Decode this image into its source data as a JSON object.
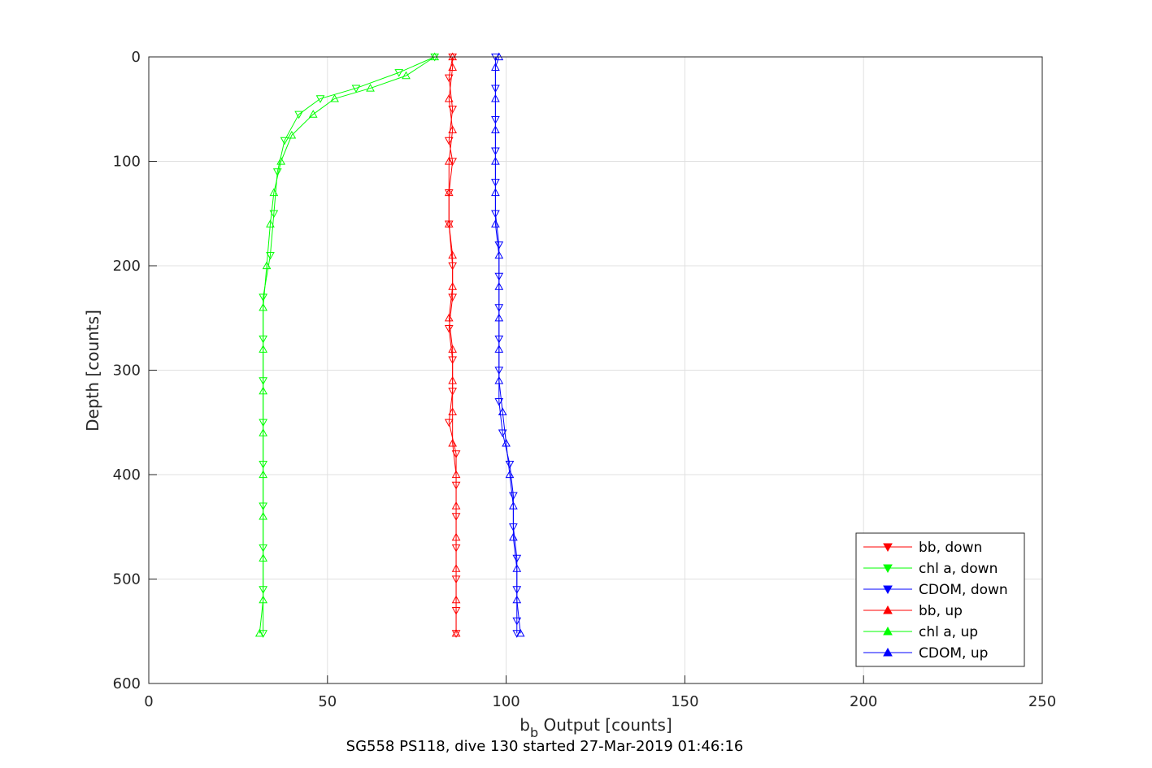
{
  "chart_data": {
    "type": "scatter",
    "xlabel": {
      "main": "b",
      "sub": "b",
      "rest": " Output [counts]"
    },
    "ylabel": "Depth [counts]",
    "caption": "SG558 PS118, dive 130 started 27-Mar-2019 01:46:16",
    "xlim": [
      0,
      250
    ],
    "ylim": [
      0,
      600
    ],
    "y_reversed": true,
    "grid": true,
    "legend_placement": "bottom-right",
    "x_ticks": [
      "0",
      "50",
      "100",
      "150",
      "200",
      "250"
    ],
    "y_ticks": [
      "0",
      "100",
      "200",
      "300",
      "400",
      "500",
      "600"
    ],
    "series": [
      {
        "name": "bb, down",
        "color": "#ff0000",
        "marker": "triangle-down",
        "points": [
          [
            85,
            0
          ],
          [
            84,
            20
          ],
          [
            85,
            50
          ],
          [
            84,
            80
          ],
          [
            85,
            100
          ],
          [
            84,
            130
          ],
          [
            84,
            160
          ],
          [
            85,
            200
          ],
          [
            85,
            230
          ],
          [
            84,
            260
          ],
          [
            85,
            290
          ],
          [
            85,
            320
          ],
          [
            84,
            350
          ],
          [
            86,
            380
          ],
          [
            86,
            410
          ],
          [
            86,
            440
          ],
          [
            86,
            470
          ],
          [
            86,
            500
          ],
          [
            86,
            530
          ],
          [
            86,
            552
          ]
        ]
      },
      {
        "name": "chl a, down",
        "color": "#00ff00",
        "marker": "triangle-down",
        "points": [
          [
            80,
            0
          ],
          [
            70,
            15
          ],
          [
            58,
            30
          ],
          [
            48,
            40
          ],
          [
            42,
            55
          ],
          [
            38,
            80
          ],
          [
            36,
            110
          ],
          [
            35,
            150
          ],
          [
            34,
            190
          ],
          [
            32,
            230
          ],
          [
            32,
            270
          ],
          [
            32,
            310
          ],
          [
            32,
            350
          ],
          [
            32,
            390
          ],
          [
            32,
            430
          ],
          [
            32,
            470
          ],
          [
            32,
            510
          ],
          [
            32,
            552
          ]
        ]
      },
      {
        "name": "CDOM, down",
        "color": "#0000ff",
        "marker": "triangle-down",
        "points": [
          [
            97,
            0
          ],
          [
            97,
            30
          ],
          [
            97,
            60
          ],
          [
            97,
            90
          ],
          [
            97,
            120
          ],
          [
            97,
            150
          ],
          [
            98,
            180
          ],
          [
            98,
            210
          ],
          [
            98,
            240
          ],
          [
            98,
            270
          ],
          [
            98,
            300
          ],
          [
            98,
            330
          ],
          [
            99,
            360
          ],
          [
            101,
            390
          ],
          [
            102,
            420
          ],
          [
            102,
            450
          ],
          [
            103,
            480
          ],
          [
            103,
            510
          ],
          [
            103,
            540
          ],
          [
            103,
            552
          ]
        ]
      },
      {
        "name": "bb, up",
        "color": "#ff0000",
        "marker": "triangle-up",
        "points": [
          [
            86,
            552
          ],
          [
            86,
            520
          ],
          [
            86,
            490
          ],
          [
            86,
            460
          ],
          [
            86,
            430
          ],
          [
            86,
            400
          ],
          [
            85,
            370
          ],
          [
            85,
            340
          ],
          [
            85,
            310
          ],
          [
            85,
            280
          ],
          [
            84,
            250
          ],
          [
            85,
            220
          ],
          [
            85,
            190
          ],
          [
            84,
            160
          ],
          [
            84,
            130
          ],
          [
            84,
            100
          ],
          [
            85,
            70
          ],
          [
            84,
            40
          ],
          [
            85,
            10
          ],
          [
            85,
            0
          ]
        ]
      },
      {
        "name": "chl a, up",
        "color": "#00ff00",
        "marker": "triangle-up",
        "points": [
          [
            31,
            552
          ],
          [
            32,
            520
          ],
          [
            32,
            480
          ],
          [
            32,
            440
          ],
          [
            32,
            400
          ],
          [
            32,
            360
          ],
          [
            32,
            320
          ],
          [
            32,
            280
          ],
          [
            32,
            240
          ],
          [
            33,
            200
          ],
          [
            34,
            160
          ],
          [
            35,
            130
          ],
          [
            37,
            100
          ],
          [
            40,
            75
          ],
          [
            46,
            55
          ],
          [
            52,
            40
          ],
          [
            62,
            30
          ],
          [
            72,
            18
          ],
          [
            80,
            0
          ]
        ]
      },
      {
        "name": "CDOM, up",
        "color": "#0000ff",
        "marker": "triangle-up",
        "points": [
          [
            104,
            552
          ],
          [
            103,
            520
          ],
          [
            103,
            490
          ],
          [
            102,
            460
          ],
          [
            102,
            430
          ],
          [
            101,
            400
          ],
          [
            100,
            370
          ],
          [
            99,
            340
          ],
          [
            98,
            310
          ],
          [
            98,
            280
          ],
          [
            98,
            250
          ],
          [
            98,
            220
          ],
          [
            98,
            190
          ],
          [
            97,
            160
          ],
          [
            97,
            130
          ],
          [
            97,
            100
          ],
          [
            97,
            70
          ],
          [
            97,
            40
          ],
          [
            97,
            10
          ],
          [
            98,
            0
          ]
        ]
      }
    ]
  }
}
